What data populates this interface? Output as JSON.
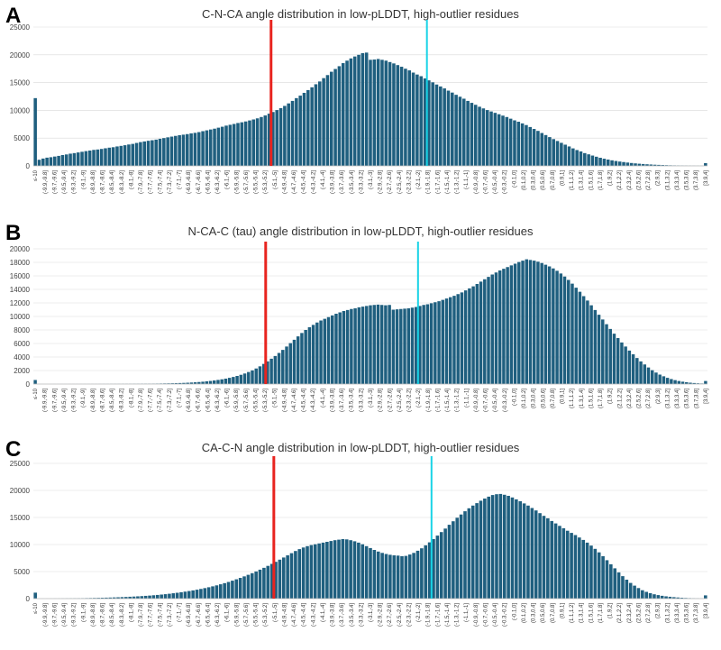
{
  "colors": {
    "bar": "#1f5f7f",
    "red_line": "#e8241f",
    "cyan_line": "#19d3e6",
    "grid": "#d9d9d9"
  },
  "chart_data": [
    {
      "panel": "A",
      "type": "bar",
      "title": "C-N-CA angle distribution in low-pLDDT, high-outlier residues",
      "ylim": [
        0,
        25000
      ],
      "yticks": [
        0,
        5000,
        10000,
        15000,
        20000,
        25000
      ],
      "underflow_label": "≤-10",
      "underflow_value": 12200,
      "overflow_label": "[3.9,4]",
      "overflow_value": 500,
      "bin_start": -10,
      "bin_step": 0.1,
      "values": [
        1100,
        1320,
        1480,
        1560,
        1680,
        1800,
        1950,
        2060,
        2200,
        2300,
        2420,
        2540,
        2660,
        2760,
        2880,
        2950,
        3050,
        3170,
        3280,
        3360,
        3500,
        3600,
        3720,
        3850,
        3960,
        4130,
        4280,
        4400,
        4520,
        4620,
        4730,
        4880,
        5000,
        5140,
        5270,
        5400,
        5530,
        5620,
        5720,
        5850,
        5950,
        6080,
        6250,
        6400,
        6550,
        6700,
        6880,
        7050,
        7250,
        7400,
        7550,
        7720,
        7850,
        8000,
        8180,
        8360,
        8560,
        8800,
        9080,
        9400,
        9700,
        10050,
        10400,
        10800,
        11250,
        11700,
        12200,
        12650,
        13150,
        13650,
        14150,
        14700,
        15200,
        15800,
        16350,
        16950,
        17450,
        17950,
        18500,
        18950,
        19350,
        19700,
        20000,
        20300,
        20400,
        19100,
        19150,
        19250,
        19100,
        18950,
        18700,
        18450,
        18150,
        17850,
        17500,
        17200,
        16800,
        16450,
        16150,
        15750,
        15400,
        15050,
        14650,
        14300,
        13950,
        13550,
        13200,
        12800,
        12450,
        12100,
        11700,
        11350,
        11000,
        10650,
        10350,
        10050,
        9800,
        9550,
        9300,
        9050,
        8800,
        8500,
        8200,
        7950,
        7650,
        7350,
        7000,
        6650,
        6300,
        5920,
        5550,
        5180,
        4820,
        4480,
        4150,
        3820,
        3500,
        3150,
        2850,
        2600,
        2300,
        2080,
        1860,
        1650,
        1460,
        1290,
        1140,
        1000,
        880,
        780,
        690,
        600,
        520,
        450,
        390,
        340,
        290,
        250,
        210,
        180,
        150,
        125,
        100,
        85,
        70,
        55,
        45,
        35,
        30,
        25,
        20
      ],
      "red_line_x": -4.0,
      "cyan_line_x": 0.0,
      "xtick_labels": [
        "≤-10",
        "(-9.9,-9.8]",
        "(-9.7,-9.6]",
        "(-9.5,-9.4]",
        "(-9.3,-9.2]",
        "(-9.1,-9]",
        "(-8.9,-8.8]",
        "(-8.7,-8.6]",
        "(-8.5,-8.4]",
        "(-8.3,-8.2]",
        "(-8.1,-8]",
        "(-7.9,-7.8]",
        "(-7.7,-7.6]",
        "(-7.5,-7.4]",
        "(-7.3,-7.2]",
        "(-7.1,-7]",
        "(-6.9,-6.8]",
        "(-6.7,-6.6]",
        "(-6.5,-6.4]",
        "(-6.3,-6.2]",
        "(-6.1,-6]",
        "(-5.9,-5.8]",
        "(-5.7,-5.6]",
        "(-5.5,-5.4]",
        "(-5.3,-5.2]",
        "(-5.1,-5]",
        "(-4.9,-4.8]",
        "(-4.7,-4.6]",
        "(-4.5,-4.4]",
        "(-4.3,-4.2]",
        "(-4.1,-4]",
        "(-3.9,-3.8]",
        "(-3.7,-3.6]",
        "(-3.5,-3.4]",
        "(-3.3,-3.2]",
        "(-3.1,-3]",
        "(-2.9,-2.8]",
        "(-2.7,-2.6]",
        "(-2.5,-2.4]",
        "(-2.3,-2.2]",
        "(-2.1,-2]",
        "(-1.9,-1.8]",
        "(-1.7,-1.6]",
        "(-1.5,-1.4]",
        "(-1.3,-1.2]",
        "(-1.1,-1]",
        "(-0.9,-0.8]",
        "(-0.7,-0.6]",
        "(-0.5,-0.4]",
        "(-0.3,-0.2]",
        "(-0.1,0]",
        "(0.1,0.2]",
        "(0.3,0.4]",
        "(0.5,0.6]",
        "(0.7,0.8]",
        "(0.9,1]",
        "(1.1,1.2]",
        "(1.3,1.4]",
        "(1.5,1.6]",
        "(1.7,1.8]",
        "(1.9,2]",
        "(2.1,2.2]",
        "(2.3,2.4]",
        "(2.5,2.6]",
        "(2.7,2.8]",
        "(2.9,3]",
        "(3.1,3.2]",
        "(3.3,3.4]",
        "(3.5,3.6]",
        "(3.7,3.8]",
        "[3.9,4]"
      ]
    },
    {
      "panel": "B",
      "type": "bar",
      "title": "N-CA-C (tau) angle distribution in low-pLDDT, high-outlier residues",
      "ylim": [
        0,
        20000
      ],
      "yticks": [
        0,
        2000,
        4000,
        6000,
        8000,
        10000,
        12000,
        14000,
        16000,
        18000,
        20000
      ],
      "underflow_label": "≤-10",
      "underflow_value": 600,
      "overflow_label": "[3.9,4]",
      "overflow_value": 450,
      "bin_start": -10,
      "bin_step": 0.1,
      "values": [
        5,
        5,
        5,
        5,
        6,
        6,
        7,
        7,
        8,
        8,
        9,
        10,
        11,
        12,
        13,
        14,
        15,
        17,
        19,
        21,
        23,
        25,
        28,
        30,
        33,
        37,
        40,
        45,
        50,
        55,
        60,
        70,
        80,
        90,
        100,
        115,
        130,
        150,
        170,
        195,
        225,
        260,
        300,
        345,
        400,
        460,
        530,
        610,
        700,
        800,
        920,
        1050,
        1200,
        1370,
        1560,
        1780,
        2020,
        2300,
        2620,
        2980,
        3350,
        3750,
        4150,
        4600,
        5050,
        5550,
        6050,
        6550,
        7050,
        7550,
        8000,
        8400,
        8750,
        9100,
        9400,
        9650,
        9900,
        10150,
        10400,
        10600,
        10800,
        10950,
        11100,
        11200,
        11350,
        11450,
        11550,
        11650,
        11700,
        11750,
        11700,
        11650,
        11700,
        11000,
        11050,
        11100,
        11150,
        11200,
        11300,
        11400,
        11550,
        11700,
        11800,
        11950,
        12100,
        12250,
        12450,
        12650,
        12850,
        13050,
        13300,
        13550,
        13850,
        14150,
        14450,
        14800,
        15150,
        15500,
        15850,
        16200,
        16500,
        16800,
        17050,
        17300,
        17550,
        17800,
        18050,
        18250,
        18450,
        18350,
        18250,
        18100,
        17900,
        17650,
        17400,
        17100,
        16750,
        16350,
        15900,
        15400,
        14850,
        14250,
        13650,
        13000,
        12350,
        11650,
        10950,
        10250,
        9550,
        8850,
        8150,
        7450,
        6800,
        6150,
        5550,
        4950,
        4400,
        3850,
        3350,
        2900,
        2450,
        2050,
        1700,
        1400,
        1150,
        920,
        740,
        580,
        450,
        350,
        270,
        200,
        150,
        110,
        80
      ],
      "red_line_x": -4.0,
      "cyan_line_x": 0.0,
      "xtick_labels": [
        "≤-10",
        "(-9.9,-9.8]",
        "(-9.7,-9.6]",
        "(-9.5,-9.4]",
        "(-9.3,-9.2]",
        "(-9.1,-9]",
        "(-8.9,-8.8]",
        "(-8.7,-8.6]",
        "(-8.5,-8.4]",
        "(-8.3,-8.2]",
        "(-8.1,-8]",
        "(-7.9,-7.8]",
        "(-7.7,-7.6]",
        "(-7.5,-7.4]",
        "(-7.3,-7.2]",
        "(-7.1,-7]",
        "(-6.9,-6.8]",
        "(-6.7,-6.6]",
        "(-6.5,-6.4]",
        "(-6.3,-6.2]",
        "(-6.1,-6]",
        "(-5.9,-5.8]",
        "(-5.7,-5.6]",
        "(-5.5,-5.4]",
        "(-5.3,-5.2]",
        "(-5.1,-5]",
        "(-4.9,-4.8]",
        "(-4.7,-4.6]",
        "(-4.5,-4.4]",
        "(-4.3,-4.2]",
        "(-4.1,-4]",
        "(-3.9,-3.8]",
        "(-3.7,-3.6]",
        "(-3.5,-3.4]",
        "(-3.3,-3.2]",
        "(-3.1,-3]",
        "(-2.9,-2.8]",
        "(-2.7,-2.6]",
        "(-2.5,-2.4]",
        "(-2.3,-2.2]",
        "(-2.1,-2]",
        "(-1.9,-1.8]",
        "(-1.7,-1.6]",
        "(-1.5,-1.4]",
        "(-1.3,-1.2]",
        "(-1.1,-1]",
        "(-0.9,-0.8]",
        "(-0.7,-0.6]",
        "(-0.5,-0.4]",
        "(-0.3,-0.2]",
        "(-0.1,0]",
        "(0.1,0.2]",
        "(0.3,0.4]",
        "(0.5,0.6]",
        "(0.7,0.8]",
        "(0.9,1]",
        "(1.1,1.2]",
        "(1.3,1.4]",
        "(1.5,1.6]",
        "(1.7,1.8]",
        "(1.9,2]",
        "(2.1,2.2]",
        "(2.3,2.4]",
        "(2.5,2.6]",
        "(2.7,2.8]",
        "(2.9,3]",
        "(3.1,3.2]",
        "(3.3,3.4]",
        "(3.5,3.6]",
        "(3.7,3.8]",
        "[3.9,4]"
      ]
    },
    {
      "panel": "C",
      "type": "bar",
      "title": "CA-C-N angle distribution in low-pLDDT, high-outlier residues",
      "ylim": [
        0,
        25000
      ],
      "yticks": [
        0,
        5000,
        10000,
        15000,
        20000,
        25000
      ],
      "underflow_label": "≤-10",
      "underflow_value": 1100,
      "overflow_label": "[3.9,4]",
      "overflow_value": 600,
      "bin_start": -10,
      "bin_step": 0.1,
      "values": [
        5,
        8,
        10,
        15,
        20,
        25,
        30,
        40,
        50,
        60,
        70,
        80,
        95,
        110,
        125,
        140,
        160,
        180,
        200,
        225,
        250,
        280,
        310,
        345,
        380,
        420,
        460,
        510,
        560,
        620,
        680,
        750,
        820,
        900,
        990,
        1080,
        1180,
        1290,
        1400,
        1520,
        1650,
        1790,
        1940,
        2100,
        2270,
        2450,
        2650,
        2860,
        3080,
        3320,
        3570,
        3830,
        4110,
        4400,
        4700,
        5020,
        5350,
        5690,
        6050,
        6420,
        6800,
        7200,
        7600,
        8000,
        8400,
        8800,
        9150,
        9450,
        9700,
        9900,
        10050,
        10200,
        10350,
        10500,
        10650,
        10800,
        10900,
        11000,
        10950,
        10800,
        10600,
        10350,
        10050,
        9700,
        9350,
        9000,
        8700,
        8450,
        8250,
        8100,
        8000,
        7950,
        7850,
        7900,
        8150,
        8450,
        8850,
        9300,
        9850,
        10400,
        11000,
        11650,
        12300,
        12950,
        13650,
        14300,
        14950,
        15550,
        16150,
        16700,
        17200,
        17650,
        18100,
        18500,
        18850,
        19150,
        19300,
        19350,
        19200,
        19000,
        18700,
        18350,
        18000,
        17600,
        17200,
        16750,
        16300,
        15800,
        15300,
        14850,
        14350,
        13900,
        13450,
        13000,
        12550,
        12150,
        11750,
        11300,
        10850,
        10350,
        9800,
        9200,
        8550,
        7850,
        7100,
        6350,
        5600,
        4850,
        4150,
        3500,
        2900,
        2400,
        1950,
        1550,
        1250,
        1000,
        800,
        650,
        520,
        420,
        340,
        270,
        210,
        160,
        120,
        90,
        60,
        40,
        25
      ],
      "red_line_x": -4.0,
      "cyan_line_x": 0.0,
      "xtick_labels": [
        "≤-10",
        "(-9.9,-9.8]",
        "(-9.7,-9.6]",
        "(-9.5,-9.4]",
        "(-9.3,-9.2]",
        "(-9.1,-9]",
        "(-8.9,-8.8]",
        "(-8.7,-8.6]",
        "(-8.5,-8.4]",
        "(-8.3,-8.2]",
        "(-8.1,-8]",
        "(-7.9,-7.8]",
        "(-7.7,-7.6]",
        "(-7.5,-7.4]",
        "(-7.3,-7.2]",
        "(-7.1,-7]",
        "(-6.9,-6.8]",
        "(-6.7,-6.6]",
        "(-6.5,-6.4]",
        "(-6.3,-6.2]",
        "(-6.1,-6]",
        "(-5.9,-5.8]",
        "(-5.7,-5.6]",
        "(-5.5,-5.4]",
        "(-5.3,-5.2]",
        "(-5.1,-5]",
        "(-4.9,-4.8]",
        "(-4.7,-4.6]",
        "(-4.5,-4.4]",
        "(-4.3,-4.2]",
        "(-4.1,-4]",
        "(-3.9,-3.8]",
        "(-3.7,-3.6]",
        "(-3.5,-3.4]",
        "(-3.3,-3.2]",
        "(-3.1,-3]",
        "(-2.9,-2.8]",
        "(-2.7,-2.6]",
        "(-2.5,-2.4]",
        "(-2.3,-2.2]",
        "(-2.1,-2]",
        "(-1.9,-1.8]",
        "(-1.7,-1.6]",
        "(-1.5,-1.4]",
        "(-1.3,-1.2]",
        "(-1.1,-1]",
        "(-0.9,-0.8]",
        "(-0.7,-0.6]",
        "(-0.5,-0.4]",
        "(-0.3,-0.2]",
        "(-0.1,0]",
        "(0.1,0.2]",
        "(0.3,0.4]",
        "(0.5,0.6]",
        "(0.7,0.8]",
        "(0.9,1]",
        "(1.1,1.2]",
        "(1.3,1.4]",
        "(1.5,1.6]",
        "(1.7,1.8]",
        "(1.9,2]",
        "(2.1,2.2]",
        "(2.3,2.4]",
        "(2.5,2.6]",
        "(2.7,2.8]",
        "(2.9,3]",
        "(3.1,3.2]",
        "(3.3,3.4]",
        "(3.5,3.6]",
        "(3.7,3.8]",
        "[3.9,4]"
      ]
    }
  ]
}
